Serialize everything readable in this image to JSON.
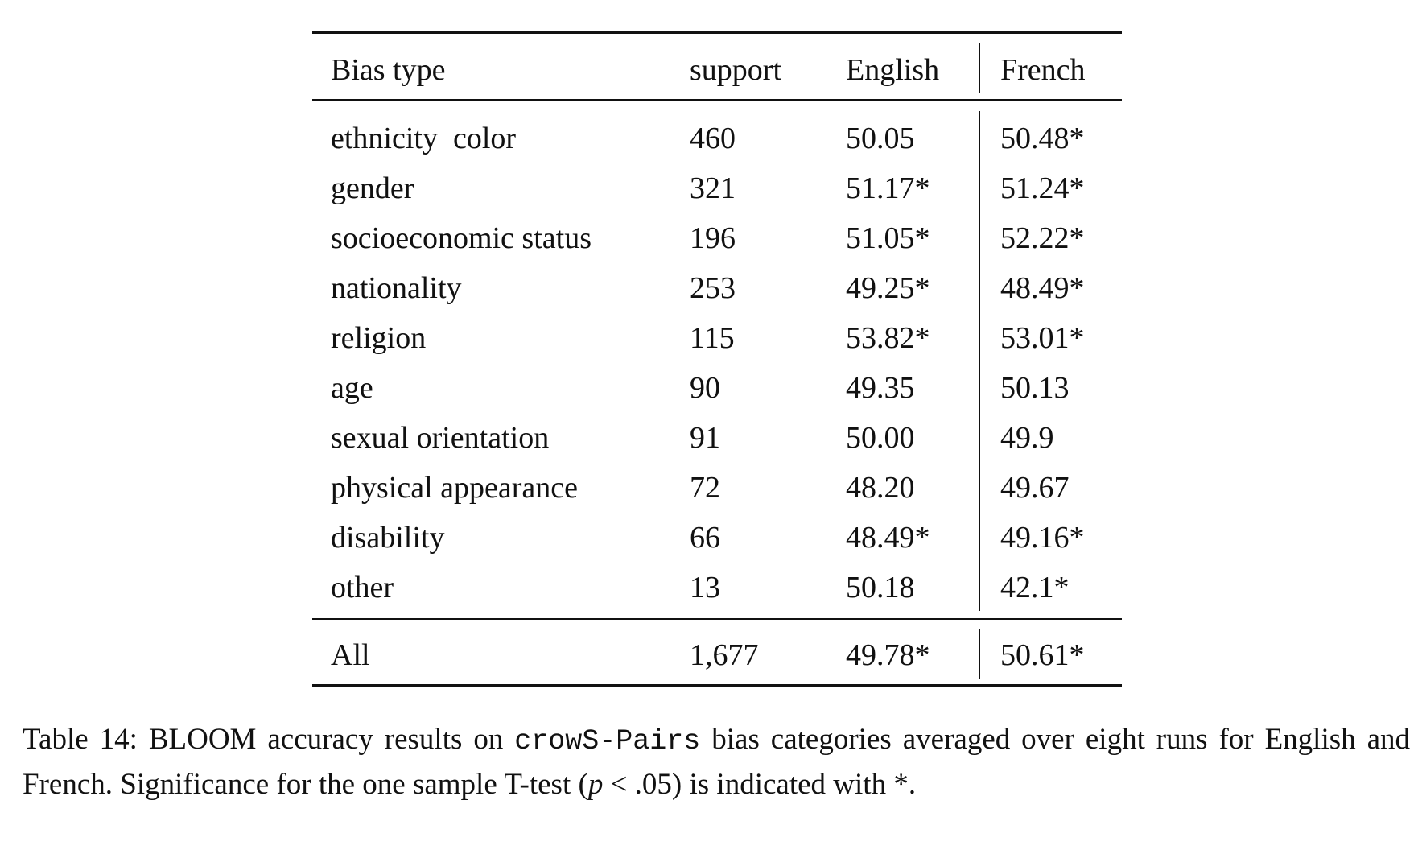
{
  "table": {
    "header": [
      "Bias type",
      "support",
      "English",
      "French"
    ],
    "rows": [
      [
        "ethnicity  color",
        "460",
        "50.05",
        "50.48*"
      ],
      [
        "gender",
        "321",
        "51.17*",
        "51.24*"
      ],
      [
        "socioeconomic status",
        "196",
        "51.05*",
        "52.22*"
      ],
      [
        "nationality",
        "253",
        "49.25*",
        "48.49*"
      ],
      [
        "religion",
        "115",
        "53.82*",
        "53.01*"
      ],
      [
        "age",
        "90",
        "49.35",
        "50.13"
      ],
      [
        "sexual orientation",
        "91",
        "50.00",
        "49.9"
      ],
      [
        "physical appearance",
        "72",
        "48.20",
        "49.67"
      ],
      [
        "disability",
        "66",
        "48.49*",
        "49.16*"
      ],
      [
        "other",
        "13",
        "50.18",
        "42.1*"
      ]
    ],
    "total": [
      "All",
      "1,677",
      "49.78*",
      "50.61*"
    ]
  },
  "caption": {
    "parts": [
      "Table 14: BLOOM accuracy results on ",
      "crowS-Pairs",
      " bias categories averaged over eight runs for English and French. Significance for the one sample T-test (",
      "p",
      " < .05) is indicated with *."
    ]
  }
}
